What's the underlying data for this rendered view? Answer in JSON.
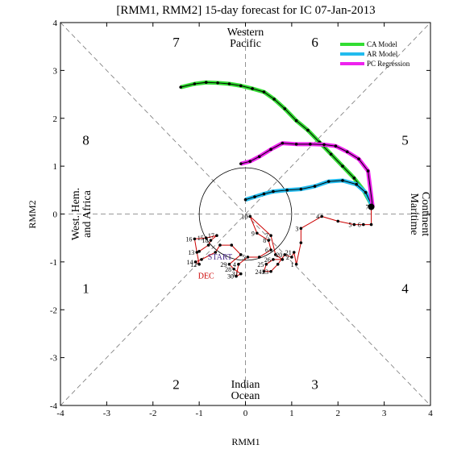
{
  "chart_data": {
    "type": "scatter",
    "title": "[RMM1, RMM2] 15-day forecast for IC 07-Jan-2013",
    "xlabel": "RMM1",
    "ylabel": "RMM2",
    "xlim": [
      -4,
      4
    ],
    "ylim": [
      -4,
      4
    ],
    "x_ticks": [
      "-4",
      "-3",
      "-2",
      "-1",
      "0",
      "1",
      "2",
      "3",
      "4"
    ],
    "y_ticks": [
      "-4",
      "-3",
      "-2",
      "-1",
      "0",
      "1",
      "2",
      "3",
      "4"
    ],
    "grid": false,
    "legend_position": "top-right",
    "unit_circle_radius": 1,
    "phase_labels": [
      {
        "text": "1",
        "x": -3.45,
        "y": -1.55
      },
      {
        "text": "2",
        "x": -1.5,
        "y": -3.55
      },
      {
        "text": "3",
        "x": 1.5,
        "y": -3.55
      },
      {
        "text": "4",
        "x": 3.45,
        "y": -1.55
      },
      {
        "text": "5",
        "x": 3.45,
        "y": 1.55
      },
      {
        "text": "6",
        "x": 1.5,
        "y": 3.6
      },
      {
        "text": "7",
        "x": -1.5,
        "y": 3.6
      },
      {
        "text": "8",
        "x": -3.45,
        "y": 1.55
      }
    ],
    "region_labels": {
      "top": [
        "Western",
        "Pacific"
      ],
      "bottom": [
        "Indian",
        "Ocean"
      ],
      "left": [
        "West. Hem.",
        "and Africa"
      ],
      "right": [
        "Maritime",
        "Continent"
      ]
    },
    "observed": {
      "color": "#cc0000",
      "points": [
        {
          "x": -1.0,
          "y": -0.78,
          "label": ""
        },
        {
          "x": -0.8,
          "y": -0.65,
          "label": ""
        },
        {
          "x": -0.75,
          "y": -0.55,
          "label": "18"
        },
        {
          "x": -0.62,
          "y": -0.45,
          "label": "17"
        },
        {
          "x": -0.85,
          "y": -0.5,
          "label": "15"
        },
        {
          "x": -1.1,
          "y": -0.52,
          "label": "16"
        },
        {
          "x": -1.05,
          "y": -0.8,
          "label": "13"
        },
        {
          "x": -1.0,
          "y": -1.05,
          "label": "12"
        },
        {
          "x": -1.08,
          "y": -1.0,
          "label": "14"
        },
        {
          "x": -0.95,
          "y": -0.95,
          "label": ""
        },
        {
          "x": -0.65,
          "y": -0.8,
          "label": ""
        },
        {
          "x": -0.55,
          "y": -0.65,
          "label": ""
        },
        {
          "x": -0.3,
          "y": -0.65,
          "label": ""
        },
        {
          "x": -0.1,
          "y": -0.85,
          "label": ""
        },
        {
          "x": -0.35,
          "y": -1.05,
          "label": "29"
        },
        {
          "x": -0.25,
          "y": -1.15,
          "label": "28"
        },
        {
          "x": -0.1,
          "y": -1.25,
          "label": "31"
        },
        {
          "x": -0.2,
          "y": -1.3,
          "label": "30"
        },
        {
          "x": -0.15,
          "y": -1.05,
          "label": "4"
        },
        {
          "x": 0.05,
          "y": -0.9,
          "label": "5"
        },
        {
          "x": 0.3,
          "y": -0.9,
          "label": ""
        },
        {
          "x": 0.55,
          "y": -0.75,
          "label": "6"
        },
        {
          "x": 0.5,
          "y": -0.55,
          "label": "8"
        },
        {
          "x": 0.25,
          "y": -0.4,
          "label": "9"
        },
        {
          "x": 0.1,
          "y": -0.05,
          "label": "10"
        },
        {
          "x": 0.55,
          "y": -0.45,
          "label": "7"
        },
        {
          "x": 0.65,
          "y": -0.85,
          "label": ""
        },
        {
          "x": 0.8,
          "y": -0.95,
          "label": ""
        },
        {
          "x": 0.6,
          "y": -0.95,
          "label": "26"
        },
        {
          "x": 0.45,
          "y": -1.05,
          "label": "25"
        },
        {
          "x": 0.4,
          "y": -1.2,
          "label": "24"
        },
        {
          "x": 0.55,
          "y": -1.2,
          "label": "23"
        },
        {
          "x": 0.7,
          "y": -1.05,
          "label": ""
        },
        {
          "x": 0.85,
          "y": -0.85,
          "label": "20"
        },
        {
          "x": 1.0,
          "y": -0.9,
          "label": "2"
        },
        {
          "x": 1.05,
          "y": -0.8,
          "label": "21"
        },
        {
          "x": 1.1,
          "y": -1.05,
          "label": "1"
        },
        {
          "x": 1.2,
          "y": -0.6,
          "label": ""
        },
        {
          "x": 1.2,
          "y": -0.3,
          "label": "3"
        },
        {
          "x": 1.65,
          "y": -0.05,
          "label": "4"
        },
        {
          "x": 2.0,
          "y": -0.15,
          "label": ""
        },
        {
          "x": 2.35,
          "y": -0.22,
          "label": "5"
        },
        {
          "x": 2.55,
          "y": -0.22,
          "label": "6"
        },
        {
          "x": 2.72,
          "y": -0.22,
          "label": ""
        },
        {
          "x": 2.72,
          "y": 0.15,
          "label": "7"
        }
      ],
      "markers": [
        {
          "text": "START",
          "x": -0.55,
          "y": -0.95,
          "color": "#4b2a8a"
        },
        {
          "text": "DEC",
          "x": -0.85,
          "y": -1.35,
          "color": "#cc0000"
        }
      ]
    },
    "series": [
      {
        "name": "CA Model",
        "color": "#33dd33",
        "x": [
          2.75,
          2.55,
          2.35,
          2.1,
          1.85,
          1.6,
          1.35,
          1.1,
          0.85,
          0.62,
          0.4,
          0.15,
          -0.1,
          -0.35,
          -0.6,
          -0.85,
          -1.1,
          -1.4
        ],
        "y": [
          0.15,
          0.5,
          0.75,
          1.0,
          1.25,
          1.5,
          1.75,
          1.95,
          2.2,
          2.4,
          2.55,
          2.62,
          2.68,
          2.72,
          2.74,
          2.75,
          2.72,
          2.65
        ]
      },
      {
        "name": "AR Model",
        "color": "#22bbee",
        "x": [
          2.75,
          2.6,
          2.4,
          2.1,
          1.8,
          1.5,
          1.2,
          0.9,
          0.6,
          0.4,
          0.2,
          0.0
        ],
        "y": [
          0.15,
          0.45,
          0.62,
          0.7,
          0.68,
          0.58,
          0.52,
          0.5,
          0.47,
          0.42,
          0.36,
          0.3
        ]
      },
      {
        "name": "PC Regression",
        "color": "#ee22ee",
        "x": [
          2.75,
          2.65,
          2.45,
          2.2,
          1.95,
          1.7,
          1.4,
          1.1,
          0.8,
          0.55,
          0.3,
          0.1,
          -0.1
        ],
        "y": [
          0.15,
          0.9,
          1.15,
          1.3,
          1.42,
          1.45,
          1.46,
          1.46,
          1.48,
          1.35,
          1.2,
          1.1,
          1.05
        ]
      }
    ]
  }
}
